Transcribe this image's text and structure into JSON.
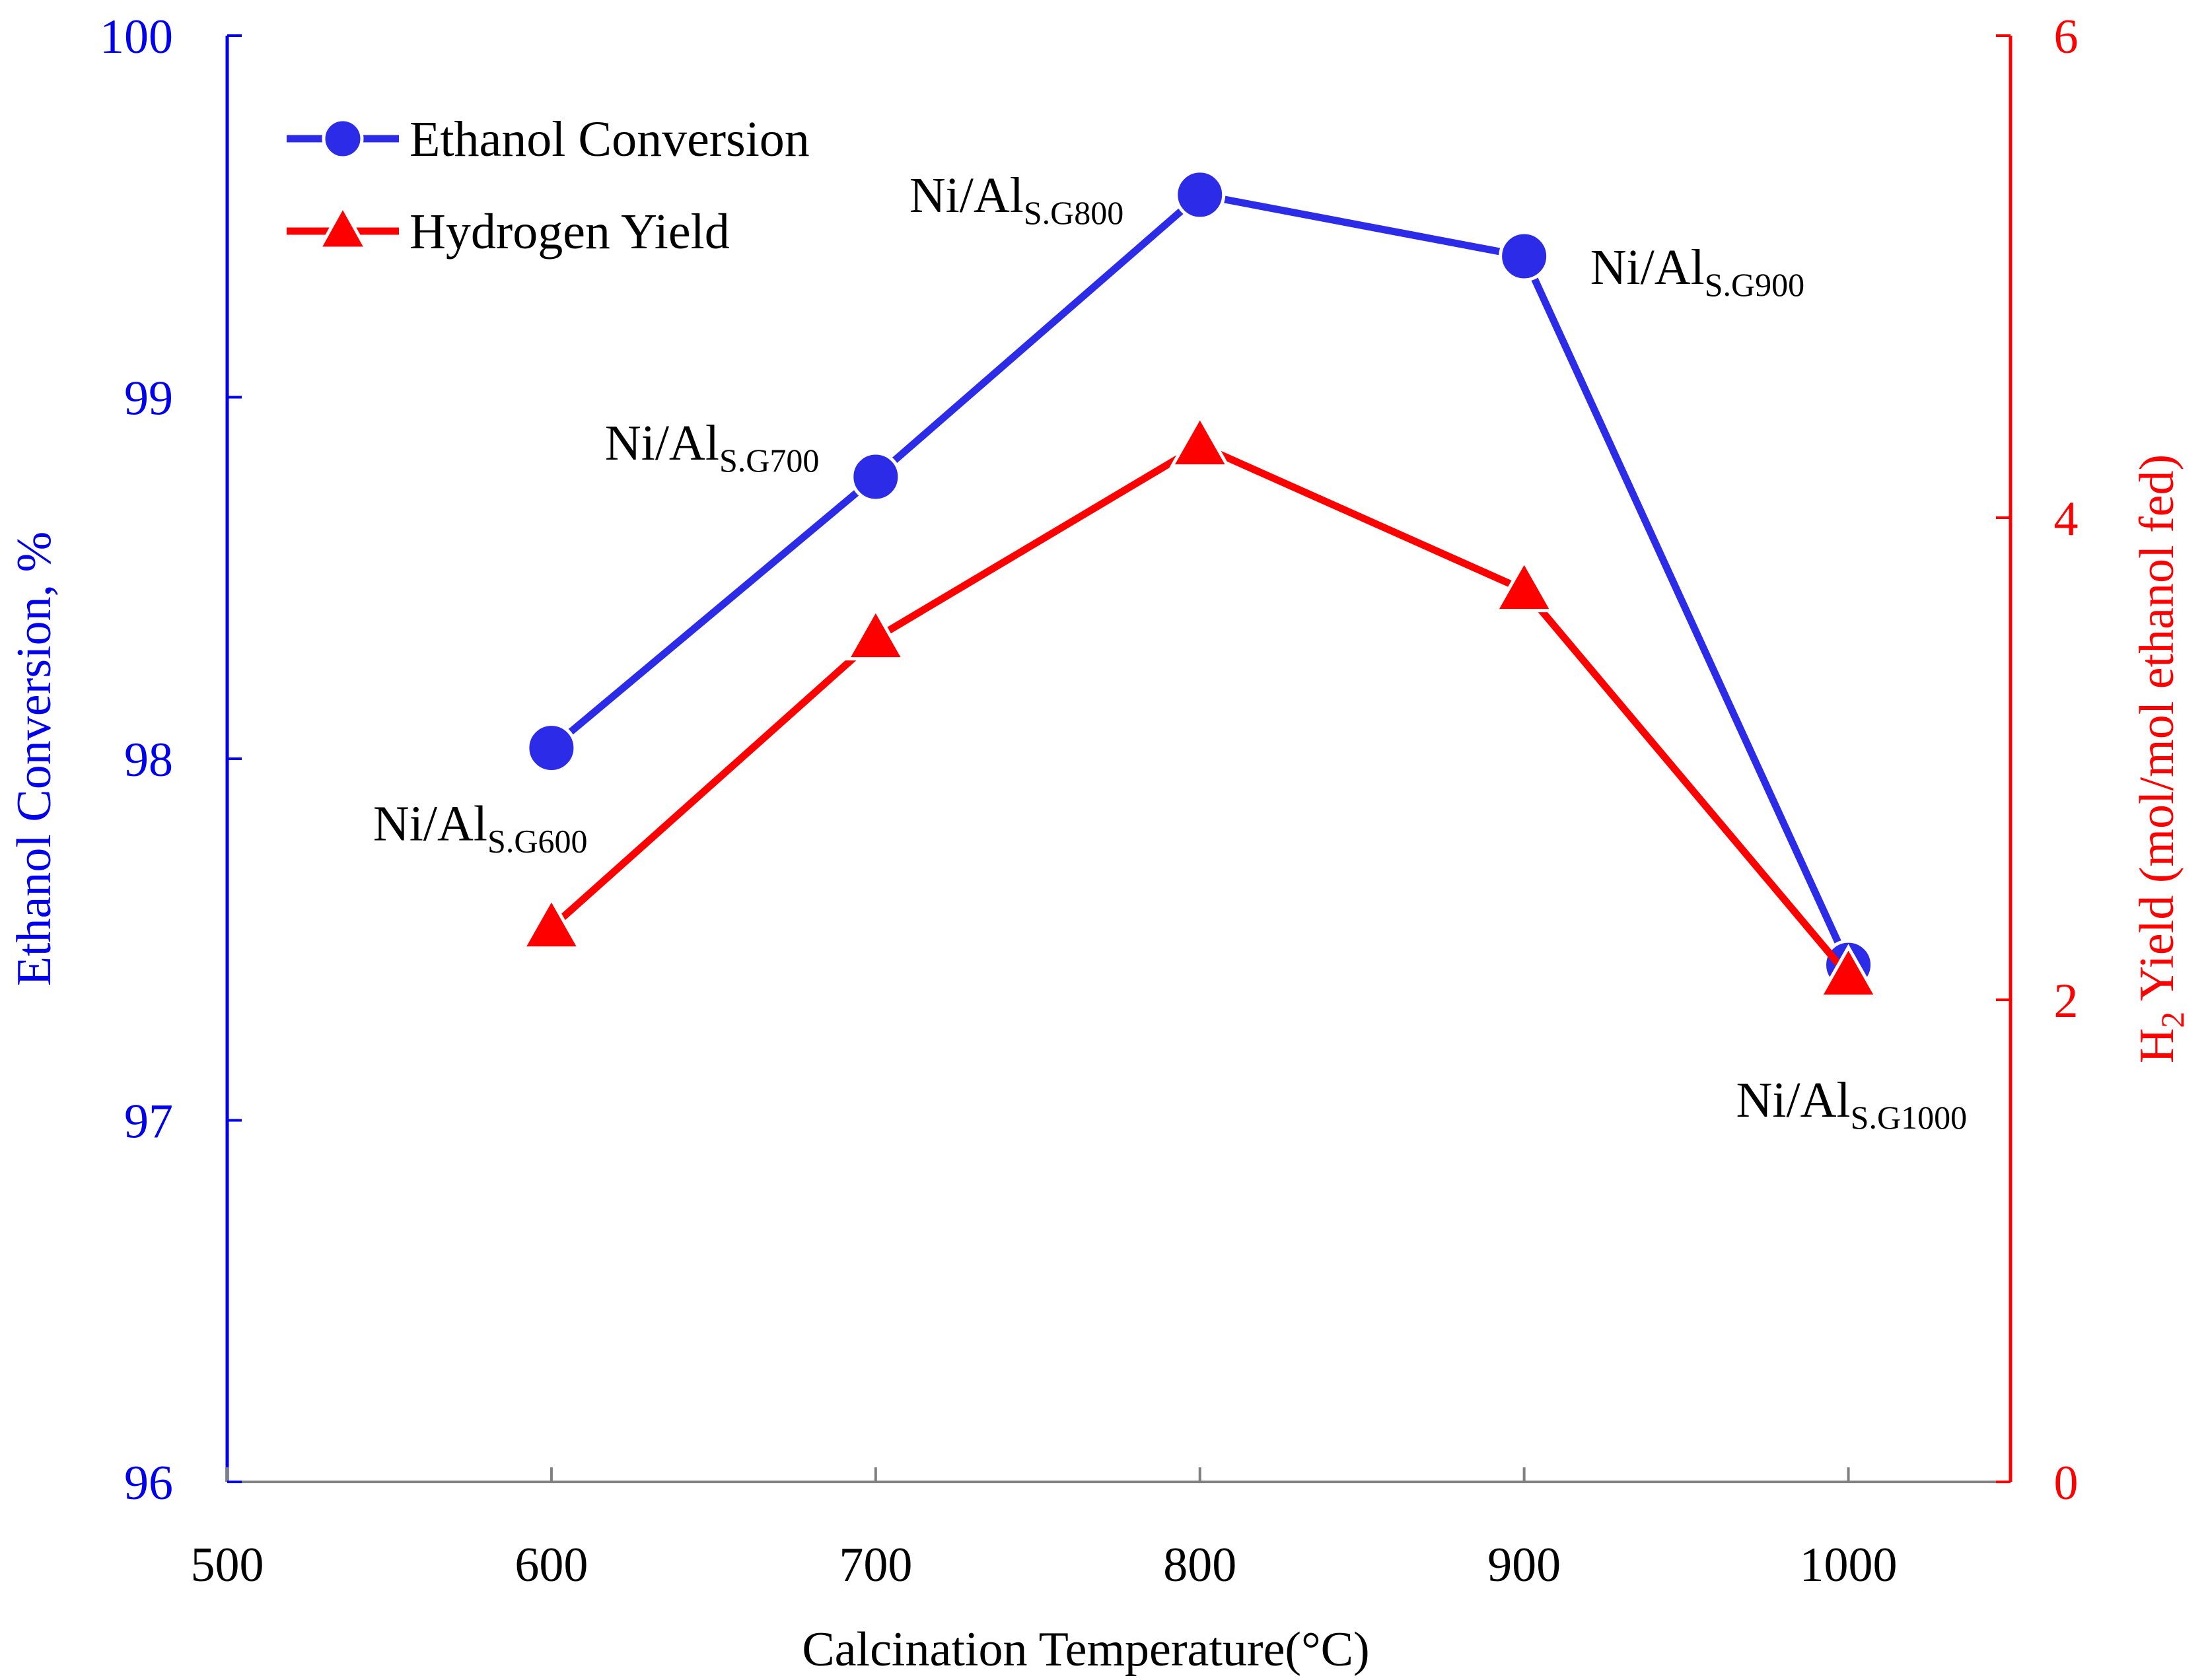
{
  "chart_data": {
    "type": "line",
    "title": "",
    "x": [
      600,
      700,
      800,
      900,
      1000
    ],
    "xlabel": "Calcination Temperature(°C)",
    "xlim": [
      500,
      1050
    ],
    "xticks": [
      500,
      600,
      700,
      800,
      900,
      1000
    ],
    "ylabel_left": "Ethanol Conversion, %",
    "ylim_left": [
      96,
      100
    ],
    "yticks_left": [
      96,
      97,
      98,
      99,
      100
    ],
    "ylabel_right_main": "H",
    "ylabel_right_sub": "2",
    "ylabel_right_rest": " Yield (mol/mol ethanol fed)",
    "ylim_right": [
      0,
      6
    ],
    "yticks_right": [
      0,
      2,
      4,
      6
    ],
    "grid": false,
    "legend_position": "top-left",
    "series": [
      {
        "name": "Ethanol Conversion",
        "axis": "left",
        "marker": "circle",
        "color": "#2b2be8",
        "values": [
          98.03,
          98.78,
          99.56,
          99.39,
          97.43
        ]
      },
      {
        "name": "Hydrogen Yield",
        "axis": "right",
        "marker": "triangle",
        "color": "#ff0000",
        "values": [
          2.3,
          3.5,
          4.3,
          3.7,
          2.1
        ]
      }
    ],
    "annotations": [
      {
        "main": "Ni/Al",
        "sub": "S.G600",
        "x": 600
      },
      {
        "main": "Ni/Al",
        "sub": "S.G700",
        "x": 700
      },
      {
        "main": "Ni/Al",
        "sub": "S.G800",
        "x": 800
      },
      {
        "main": "Ni/Al",
        "sub": "S.G900",
        "x": 900
      },
      {
        "main": "Ni/Al",
        "sub": "S.G1000",
        "x": 1000
      }
    ]
  }
}
